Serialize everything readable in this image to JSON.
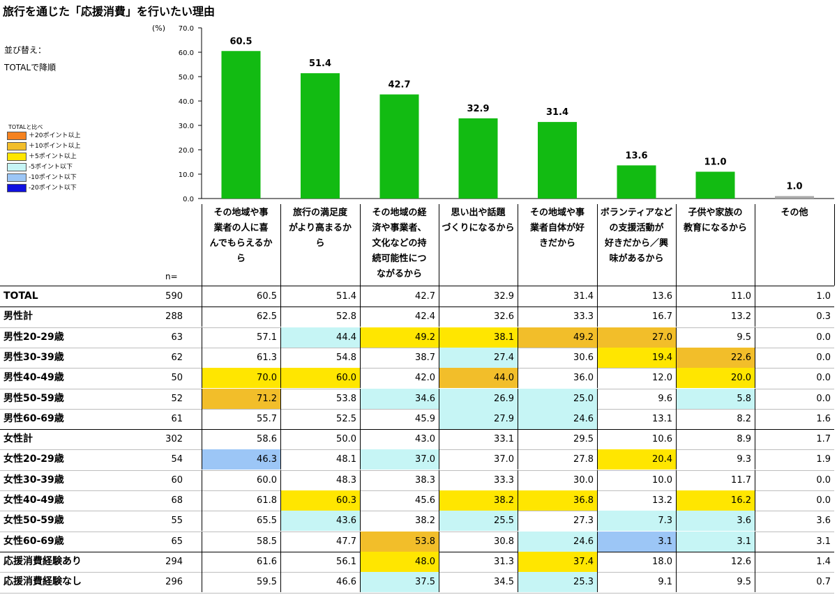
{
  "title": "旅行を通じた「応援消費」を行いたい理由",
  "sort_label_1": "並び替え：",
  "sort_label_2": "TOTALで降順",
  "legend": {
    "title": "TOTALと比べ",
    "items": [
      {
        "label": "＋20ポイント以上",
        "color": "#f5821f"
      },
      {
        "label": "＋10ポイント以上",
        "color": "#f2be2a"
      },
      {
        "label": "＋5ポイント以上",
        "color": "#ffe600"
      },
      {
        "label": "-5ポイント以下",
        "color": "#c6f5f5"
      },
      {
        "label": "-10ポイント以下",
        "color": "#9cc6f6"
      },
      {
        "label": "-20ポイント以下",
        "color": "#1010e0"
      }
    ]
  },
  "n_label": "n=",
  "chart_data": {
    "type": "bar",
    "unit": "(%)",
    "ylim": [
      0,
      70
    ],
    "yticks": [
      "0.0",
      "10.0",
      "20.0",
      "30.0",
      "40.0",
      "50.0",
      "60.0",
      "70.0"
    ],
    "categories": [
      "その地域や事業者の人に喜んでもらえるから",
      "旅行の満足度がより高まるから",
      "その地域の経済や事業者、文化などの持続可能性につながるから",
      "思い出や話題づくりになるから",
      "その地域や事業者自体が好きだから",
      "ボランティアなどの支援活動が好きだから／興味があるから",
      "子供や家族の教育になるから",
      "その他"
    ],
    "header_lines": [
      [
        "その地域や事",
        "業者の人に喜",
        "んでもらえるか",
        "ら"
      ],
      [
        "旅行の満足度",
        "がより高まるか",
        "ら"
      ],
      [
        "その地域の経",
        "済や事業者、",
        "文化などの持",
        "続可能性につ",
        "ながるから"
      ],
      [
        "思い出や話題",
        "づくりになるから"
      ],
      [
        "その地域や事",
        "業者自体が好",
        "きだから"
      ],
      [
        "ボランティアなど",
        "の支援活動が",
        "好きだから／興",
        "味があるから"
      ],
      [
        "子供や家族の",
        "教育になるから"
      ],
      [
        "その他"
      ]
    ],
    "values": [
      60.5,
      51.4,
      42.7,
      32.9,
      31.4,
      13.6,
      11.0,
      1.0
    ],
    "value_labels": [
      "60.5",
      "51.4",
      "42.7",
      "32.9",
      "31.4",
      "13.6",
      "11.0",
      "1.0"
    ],
    "bar_color": "#12bb12",
    "other_bar_color": "#a8a8a8"
  },
  "table": {
    "rows": [
      {
        "label": "TOTAL",
        "n": "590",
        "values": [
          "60.5",
          "51.4",
          "42.7",
          "32.9",
          "31.4",
          "13.6",
          "11.0",
          "1.0"
        ],
        "hl": [
          "",
          "",
          "",
          "",
          "",
          "",
          "",
          ""
        ]
      },
      {
        "label": "男性計",
        "n": "288",
        "values": [
          "62.5",
          "52.8",
          "42.4",
          "32.6",
          "33.3",
          "16.7",
          "13.2",
          "0.3"
        ],
        "hl": [
          "",
          "",
          "",
          "",
          "",
          "",
          "",
          ""
        ]
      },
      {
        "label": "男性20-29歳",
        "n": "63",
        "values": [
          "57.1",
          "44.4",
          "49.2",
          "38.1",
          "49.2",
          "27.0",
          "9.5",
          "0.0"
        ],
        "hl": [
          "",
          "#c6f5f5",
          "#ffe600",
          "#ffe600",
          "#f2be2a",
          "#f2be2a",
          "",
          ""
        ]
      },
      {
        "label": "男性30-39歳",
        "n": "62",
        "values": [
          "61.3",
          "54.8",
          "38.7",
          "27.4",
          "30.6",
          "19.4",
          "22.6",
          "0.0"
        ],
        "hl": [
          "",
          "",
          "",
          "#c6f5f5",
          "",
          "#ffe600",
          "#f2be2a",
          ""
        ]
      },
      {
        "label": "男性40-49歳",
        "n": "50",
        "values": [
          "70.0",
          "60.0",
          "42.0",
          "44.0",
          "36.0",
          "12.0",
          "20.0",
          "0.0"
        ],
        "hl": [
          "#ffe600",
          "#ffe600",
          "",
          "#f2be2a",
          "",
          "",
          "#ffe600",
          ""
        ]
      },
      {
        "label": "男性50-59歳",
        "n": "52",
        "values": [
          "71.2",
          "53.8",
          "34.6",
          "26.9",
          "25.0",
          "9.6",
          "5.8",
          "0.0"
        ],
        "hl": [
          "#f2be2a",
          "",
          "#c6f5f5",
          "#c6f5f5",
          "#c6f5f5",
          "",
          "#c6f5f5",
          ""
        ]
      },
      {
        "label": "男性60-69歳",
        "n": "61",
        "values": [
          "55.7",
          "52.5",
          "45.9",
          "27.9",
          "24.6",
          "13.1",
          "8.2",
          "1.6"
        ],
        "hl": [
          "",
          "",
          "",
          "#c6f5f5",
          "#c6f5f5",
          "",
          "",
          ""
        ]
      },
      {
        "label": "女性計",
        "n": "302",
        "values": [
          "58.6",
          "50.0",
          "43.0",
          "33.1",
          "29.5",
          "10.6",
          "8.9",
          "1.7"
        ],
        "hl": [
          "",
          "",
          "",
          "",
          "",
          "",
          "",
          ""
        ]
      },
      {
        "label": "女性20-29歳",
        "n": "54",
        "values": [
          "46.3",
          "48.1",
          "37.0",
          "37.0",
          "27.8",
          "20.4",
          "9.3",
          "1.9"
        ],
        "hl": [
          "#9cc6f6",
          "",
          "#c6f5f5",
          "",
          "",
          "#ffe600",
          "",
          ""
        ]
      },
      {
        "label": "女性30-39歳",
        "n": "60",
        "values": [
          "60.0",
          "48.3",
          "38.3",
          "33.3",
          "30.0",
          "10.0",
          "11.7",
          "0.0"
        ],
        "hl": [
          "",
          "",
          "",
          "",
          "",
          "",
          "",
          ""
        ]
      },
      {
        "label": "女性40-49歳",
        "n": "68",
        "values": [
          "61.8",
          "60.3",
          "45.6",
          "38.2",
          "36.8",
          "13.2",
          "16.2",
          "0.0"
        ],
        "hl": [
          "",
          "#ffe600",
          "",
          "#ffe600",
          "#ffe600",
          "",
          "#ffe600",
          ""
        ]
      },
      {
        "label": "女性50-59歳",
        "n": "55",
        "values": [
          "65.5",
          "43.6",
          "38.2",
          "25.5",
          "27.3",
          "7.3",
          "3.6",
          "3.6"
        ],
        "hl": [
          "",
          "#c6f5f5",
          "",
          "#c6f5f5",
          "",
          "#c6f5f5",
          "#c6f5f5",
          ""
        ]
      },
      {
        "label": "女性60-69歳",
        "n": "65",
        "values": [
          "58.5",
          "47.7",
          "53.8",
          "30.8",
          "24.6",
          "3.1",
          "3.1",
          "3.1"
        ],
        "hl": [
          "",
          "",
          "#f2be2a",
          "",
          "#c6f5f5",
          "#9cc6f6",
          "#c6f5f5",
          ""
        ]
      },
      {
        "label": "応援消費経験あり",
        "n": "294",
        "values": [
          "61.6",
          "56.1",
          "48.0",
          "31.3",
          "37.4",
          "18.0",
          "12.6",
          "1.4"
        ],
        "hl": [
          "",
          "",
          "#ffe600",
          "",
          "#ffe600",
          "",
          "",
          ""
        ]
      },
      {
        "label": "応援消費経験なし",
        "n": "296",
        "values": [
          "59.5",
          "46.6",
          "37.5",
          "34.5",
          "25.3",
          "9.1",
          "9.5",
          "0.7"
        ],
        "hl": [
          "",
          "",
          "#c6f5f5",
          "",
          "#c6f5f5",
          "",
          "",
          ""
        ]
      }
    ]
  }
}
